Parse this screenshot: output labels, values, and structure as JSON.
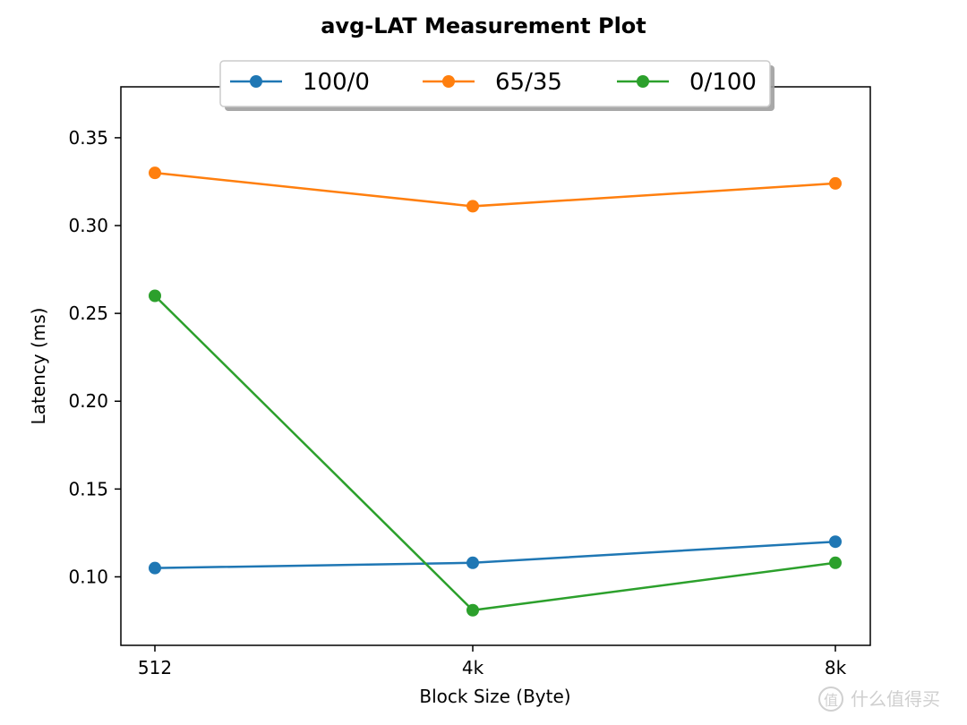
{
  "chart_data": {
    "type": "line",
    "title": "avg-LAT Measurement Plot",
    "xlabel": "Block Size (Byte)",
    "ylabel": "Latency (ms)",
    "categories": [
      "512",
      "4k",
      "8k"
    ],
    "ylim": [
      0.061,
      0.379
    ],
    "yticks": [
      0.1,
      0.15,
      0.2,
      0.25,
      0.3,
      0.35
    ],
    "ytick_labels": [
      "0.10",
      "0.15",
      "0.20",
      "0.25",
      "0.30",
      "0.35"
    ],
    "grid": false,
    "legend_position": "top-center",
    "series": [
      {
        "name": "100/0",
        "color": "#1f77b4",
        "values": [
          0.105,
          0.108,
          0.12
        ]
      },
      {
        "name": "65/35",
        "color": "#ff7f0e",
        "values": [
          0.33,
          0.311,
          0.324
        ]
      },
      {
        "name": "0/100",
        "color": "#2ca02c",
        "values": [
          0.26,
          0.081,
          0.108
        ]
      }
    ]
  },
  "watermark": {
    "text": "什么值得买",
    "icon": "zhi-logo-icon"
  }
}
